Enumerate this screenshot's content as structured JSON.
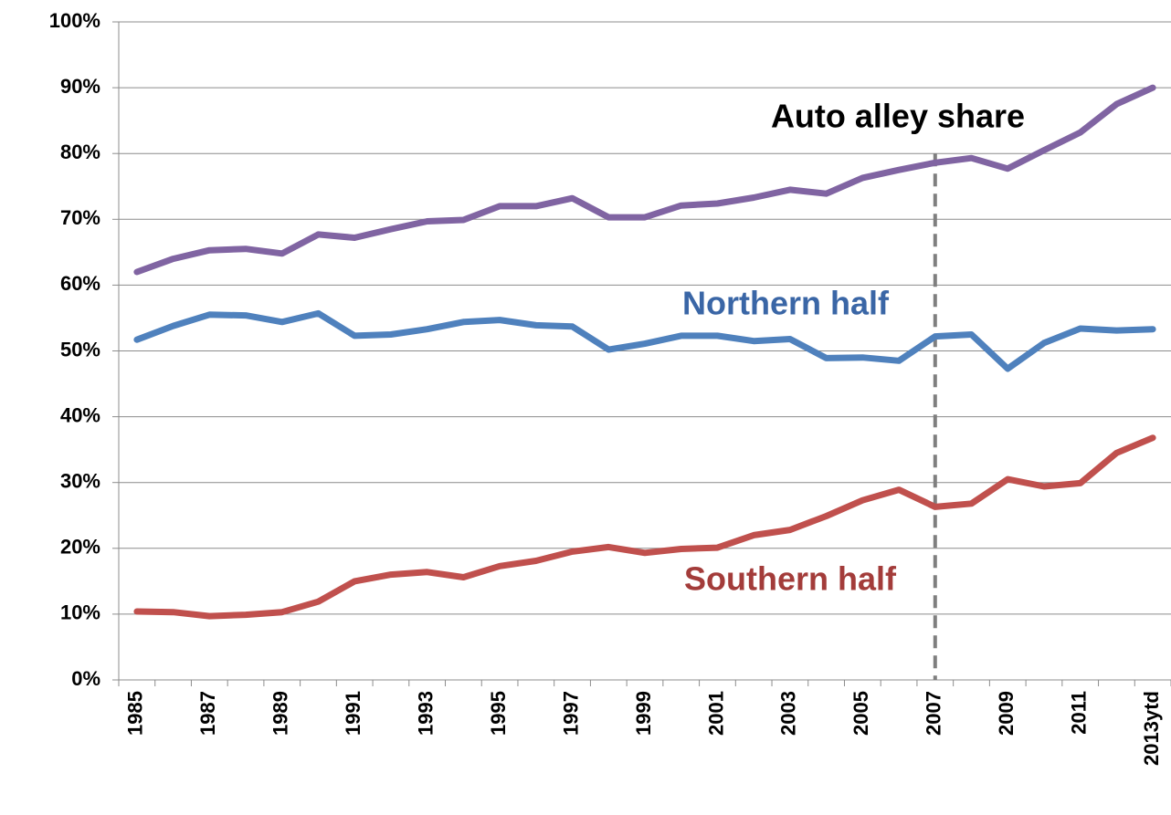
{
  "chart_data": {
    "type": "line",
    "categories": [
      "1985",
      null,
      "1987",
      null,
      "1989",
      null,
      "1991",
      null,
      "1993",
      null,
      "1995",
      null,
      "1997",
      null,
      "1999",
      null,
      "2001",
      null,
      "2003",
      null,
      "2005",
      null,
      "2007",
      null,
      "2009",
      null,
      "2011",
      null,
      "2013ytd"
    ],
    "series": [
      {
        "color": "#8064a2",
        "values": [
          62,
          64,
          65.3,
          65.5,
          64.8,
          67.7,
          67.2,
          68.5,
          69.7,
          69.9,
          72,
          72,
          73.2,
          70.3,
          70.3,
          72.1,
          72.4,
          73.3,
          74.5,
          73.9,
          76.3,
          77.5,
          78.6,
          79.3,
          77.7,
          80.5,
          83.2,
          87.5,
          90
        ]
      },
      {
        "color": "#4f81bd",
        "values": [
          51.7,
          53.8,
          55.5,
          55.4,
          54.4,
          55.7,
          52.3,
          52.5,
          53.3,
          54.4,
          54.7,
          53.9,
          53.7,
          50.2,
          51.1,
          52.3,
          52.3,
          51.5,
          51.8,
          48.9,
          49,
          48.5,
          52.2,
          52.5,
          47.3,
          51.2,
          53.4,
          53.1,
          53.3
        ]
      },
      {
        "color": "#c0504d",
        "values": [
          10.4,
          10.3,
          9.7,
          9.9,
          10.3,
          11.9,
          15,
          16,
          16.4,
          15.6,
          17.3,
          18.1,
          19.5,
          20.2,
          19.3,
          19.9,
          20.1,
          22,
          22.8,
          24.9,
          27.3,
          28.9,
          26.3,
          26.8,
          30.5,
          29.4,
          29.9,
          34.5,
          36.8
        ]
      }
    ],
    "annotations": [
      {
        "text": "Auto alley share",
        "color": "#000000"
      },
      {
        "text": "Northern half",
        "color": "#3a66a6"
      },
      {
        "text": "Southern half",
        "color": "#a33c3a"
      }
    ],
    "vline_category": "2007",
    "ylim": [
      0,
      100
    ],
    "yticks": [
      {
        "value": 0,
        "label": "0%"
      },
      {
        "value": 10,
        "label": "10%"
      },
      {
        "value": 20,
        "label": "20%"
      },
      {
        "value": 30,
        "label": "30%"
      },
      {
        "value": 40,
        "label": "40%"
      },
      {
        "value": 50,
        "label": "50%"
      },
      {
        "value": 60,
        "label": "60%"
      },
      {
        "value": 70,
        "label": "70%"
      },
      {
        "value": 80,
        "label": "80%"
      },
      {
        "value": 90,
        "label": "90%"
      },
      {
        "value": 100,
        "label": "100%"
      }
    ],
    "grid": true
  }
}
